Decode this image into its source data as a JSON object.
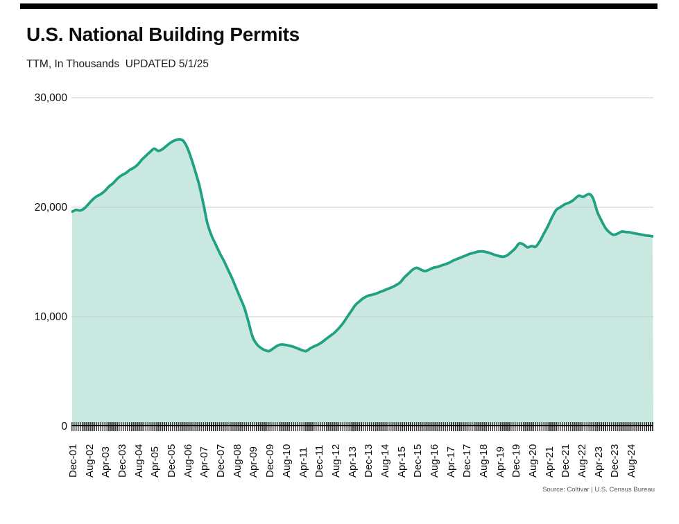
{
  "header": {
    "title": "U.S. National Building Permits",
    "subtitle": "TTM, In Thousands  UPDATED 5/1/25"
  },
  "footer": {
    "source": "Source: Coltivar | U.S. Census Bureau"
  },
  "colors": {
    "line": "#1fa182",
    "fill": "#c9e8e0",
    "grid": "#cccccc",
    "axis_line": "#000000",
    "tick_marks": "#3e3e3e",
    "text": "#0d0d0d",
    "source_text": "#585858",
    "top_bar": "#000000"
  },
  "chart_data": {
    "type": "area",
    "title": "U.S. National Building Permits",
    "subtitle": "TTM, In Thousands  UPDATED 5/1/25",
    "ylabel": "",
    "xlabel": "",
    "unit": "thousands of permits, trailing twelve months",
    "ylim": [
      0,
      30000
    ],
    "yticks": [
      0,
      10000,
      20000,
      30000
    ],
    "ytick_labels": [
      "0",
      "10,000",
      "20,000",
      "30,000"
    ],
    "grid": "horizontal",
    "legend": "none",
    "x_unit": "months since Dec-2001",
    "xtick_step_months": 8,
    "xtick_labels": [
      "Dec-01",
      "Aug-02",
      "Apr-03",
      "Dec-03",
      "Aug-04",
      "Apr-05",
      "Dec-05",
      "Aug-06",
      "Apr-07",
      "Dec-07",
      "Aug-08",
      "Apr-09",
      "Dec-09",
      "Aug-10",
      "Apr-11",
      "Dec-11",
      "Aug-12",
      "Apr-13",
      "Dec-13",
      "Aug-14",
      "Apr-15",
      "Dec-15",
      "Aug-16",
      "Apr-17",
      "Dec-17",
      "Aug-18",
      "Apr-19",
      "Dec-19",
      "Aug-20",
      "Apr-21",
      "Dec-21",
      "Aug-22",
      "Apr-23",
      "Dec-23",
      "Aug-24"
    ],
    "series": [
      {
        "name": "Building permits (TTM, thousands)",
        "points": [
          [
            0,
            19600
          ],
          [
            2,
            19750
          ],
          [
            4,
            19700
          ],
          [
            6,
            19900
          ],
          [
            8,
            20300
          ],
          [
            10,
            20700
          ],
          [
            12,
            21000
          ],
          [
            14,
            21200
          ],
          [
            16,
            21500
          ],
          [
            18,
            21900
          ],
          [
            20,
            22200
          ],
          [
            22,
            22600
          ],
          [
            24,
            22900
          ],
          [
            26,
            23100
          ],
          [
            28,
            23400
          ],
          [
            30,
            23600
          ],
          [
            32,
            23900
          ],
          [
            34,
            24350
          ],
          [
            36,
            24700
          ],
          [
            38,
            25050
          ],
          [
            40,
            25350
          ],
          [
            42,
            25150
          ],
          [
            44,
            25300
          ],
          [
            46,
            25600
          ],
          [
            48,
            25900
          ],
          [
            50,
            26100
          ],
          [
            52,
            26200
          ],
          [
            54,
            26100
          ],
          [
            56,
            25500
          ],
          [
            58,
            24500
          ],
          [
            60,
            23300
          ],
          [
            62,
            22000
          ],
          [
            64,
            20300
          ],
          [
            66,
            18500
          ],
          [
            68,
            17400
          ],
          [
            70,
            16600
          ],
          [
            72,
            15800
          ],
          [
            74,
            15100
          ],
          [
            76,
            14300
          ],
          [
            78,
            13500
          ],
          [
            80,
            12600
          ],
          [
            82,
            11700
          ],
          [
            84,
            10800
          ],
          [
            86,
            9500
          ],
          [
            88,
            8150
          ],
          [
            90,
            7500
          ],
          [
            92,
            7150
          ],
          [
            94,
            6950
          ],
          [
            96,
            6870
          ],
          [
            98,
            7100
          ],
          [
            100,
            7350
          ],
          [
            102,
            7470
          ],
          [
            104,
            7430
          ],
          [
            106,
            7350
          ],
          [
            108,
            7250
          ],
          [
            110,
            7100
          ],
          [
            112,
            6950
          ],
          [
            114,
            6870
          ],
          [
            116,
            7100
          ],
          [
            118,
            7300
          ],
          [
            120,
            7470
          ],
          [
            122,
            7700
          ],
          [
            124,
            8000
          ],
          [
            126,
            8280
          ],
          [
            128,
            8570
          ],
          [
            130,
            8950
          ],
          [
            132,
            9400
          ],
          [
            134,
            9950
          ],
          [
            136,
            10500
          ],
          [
            138,
            11050
          ],
          [
            140,
            11400
          ],
          [
            142,
            11700
          ],
          [
            144,
            11900
          ],
          [
            146,
            12000
          ],
          [
            148,
            12100
          ],
          [
            150,
            12250
          ],
          [
            152,
            12400
          ],
          [
            154,
            12550
          ],
          [
            156,
            12700
          ],
          [
            158,
            12900
          ],
          [
            160,
            13150
          ],
          [
            162,
            13600
          ],
          [
            164,
            13950
          ],
          [
            166,
            14300
          ],
          [
            168,
            14470
          ],
          [
            170,
            14300
          ],
          [
            172,
            14170
          ],
          [
            174,
            14300
          ],
          [
            176,
            14470
          ],
          [
            178,
            14550
          ],
          [
            180,
            14680
          ],
          [
            182,
            14800
          ],
          [
            184,
            14950
          ],
          [
            186,
            15150
          ],
          [
            188,
            15300
          ],
          [
            190,
            15450
          ],
          [
            192,
            15600
          ],
          [
            194,
            15750
          ],
          [
            196,
            15850
          ],
          [
            198,
            15950
          ],
          [
            200,
            15970
          ],
          [
            202,
            15900
          ],
          [
            204,
            15800
          ],
          [
            206,
            15650
          ],
          [
            208,
            15550
          ],
          [
            210,
            15480
          ],
          [
            212,
            15600
          ],
          [
            214,
            15900
          ],
          [
            216,
            16250
          ],
          [
            218,
            16700
          ],
          [
            220,
            16600
          ],
          [
            222,
            16350
          ],
          [
            224,
            16450
          ],
          [
            226,
            16400
          ],
          [
            228,
            16900
          ],
          [
            230,
            17600
          ],
          [
            232,
            18300
          ],
          [
            234,
            19100
          ],
          [
            236,
            19750
          ],
          [
            238,
            20000
          ],
          [
            240,
            20250
          ],
          [
            242,
            20400
          ],
          [
            244,
            20600
          ],
          [
            247,
            21050
          ],
          [
            249,
            20950
          ],
          [
            252,
            21200
          ],
          [
            254,
            20800
          ],
          [
            256,
            19600
          ],
          [
            258,
            18800
          ],
          [
            260,
            18100
          ],
          [
            262,
            17700
          ],
          [
            264,
            17480
          ],
          [
            266,
            17600
          ],
          [
            268,
            17780
          ],
          [
            270,
            17740
          ],
          [
            272,
            17700
          ],
          [
            274,
            17620
          ],
          [
            276,
            17560
          ],
          [
            278,
            17480
          ],
          [
            280,
            17420
          ],
          [
            283,
            17350
          ]
        ]
      }
    ]
  }
}
